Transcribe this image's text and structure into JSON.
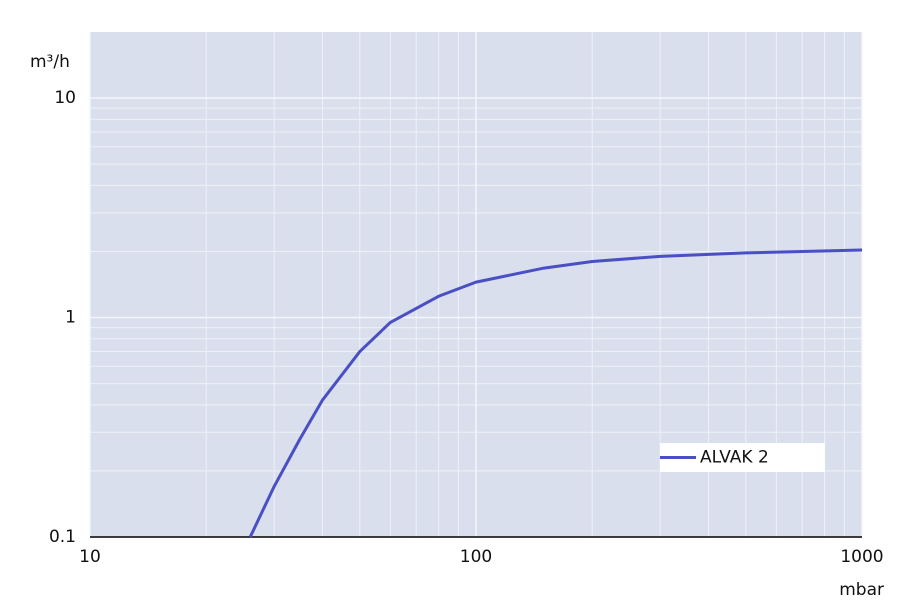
{
  "chart_data": {
    "type": "line",
    "xlabel": "mbar",
    "ylabel": "m³/h",
    "xscale": "log",
    "yscale": "log",
    "xlim": [
      10,
      1000
    ],
    "ylim": [
      0.1,
      20
    ],
    "xticks": [
      10,
      100,
      1000
    ],
    "yticks": [
      0.1,
      1,
      10
    ],
    "grid": true,
    "minor_grid": true,
    "legend": "lower right",
    "x": [
      26,
      30,
      35,
      40,
      50,
      60,
      70,
      80,
      100,
      150,
      200,
      300,
      500,
      1000
    ],
    "series": [
      {
        "name": "ALVAK 2",
        "color": "#4a4fc4",
        "values": [
          0.1,
          0.17,
          0.28,
          0.42,
          0.7,
          0.95,
          1.1,
          1.25,
          1.45,
          1.68,
          1.8,
          1.9,
          1.97,
          2.03
        ]
      }
    ]
  }
}
